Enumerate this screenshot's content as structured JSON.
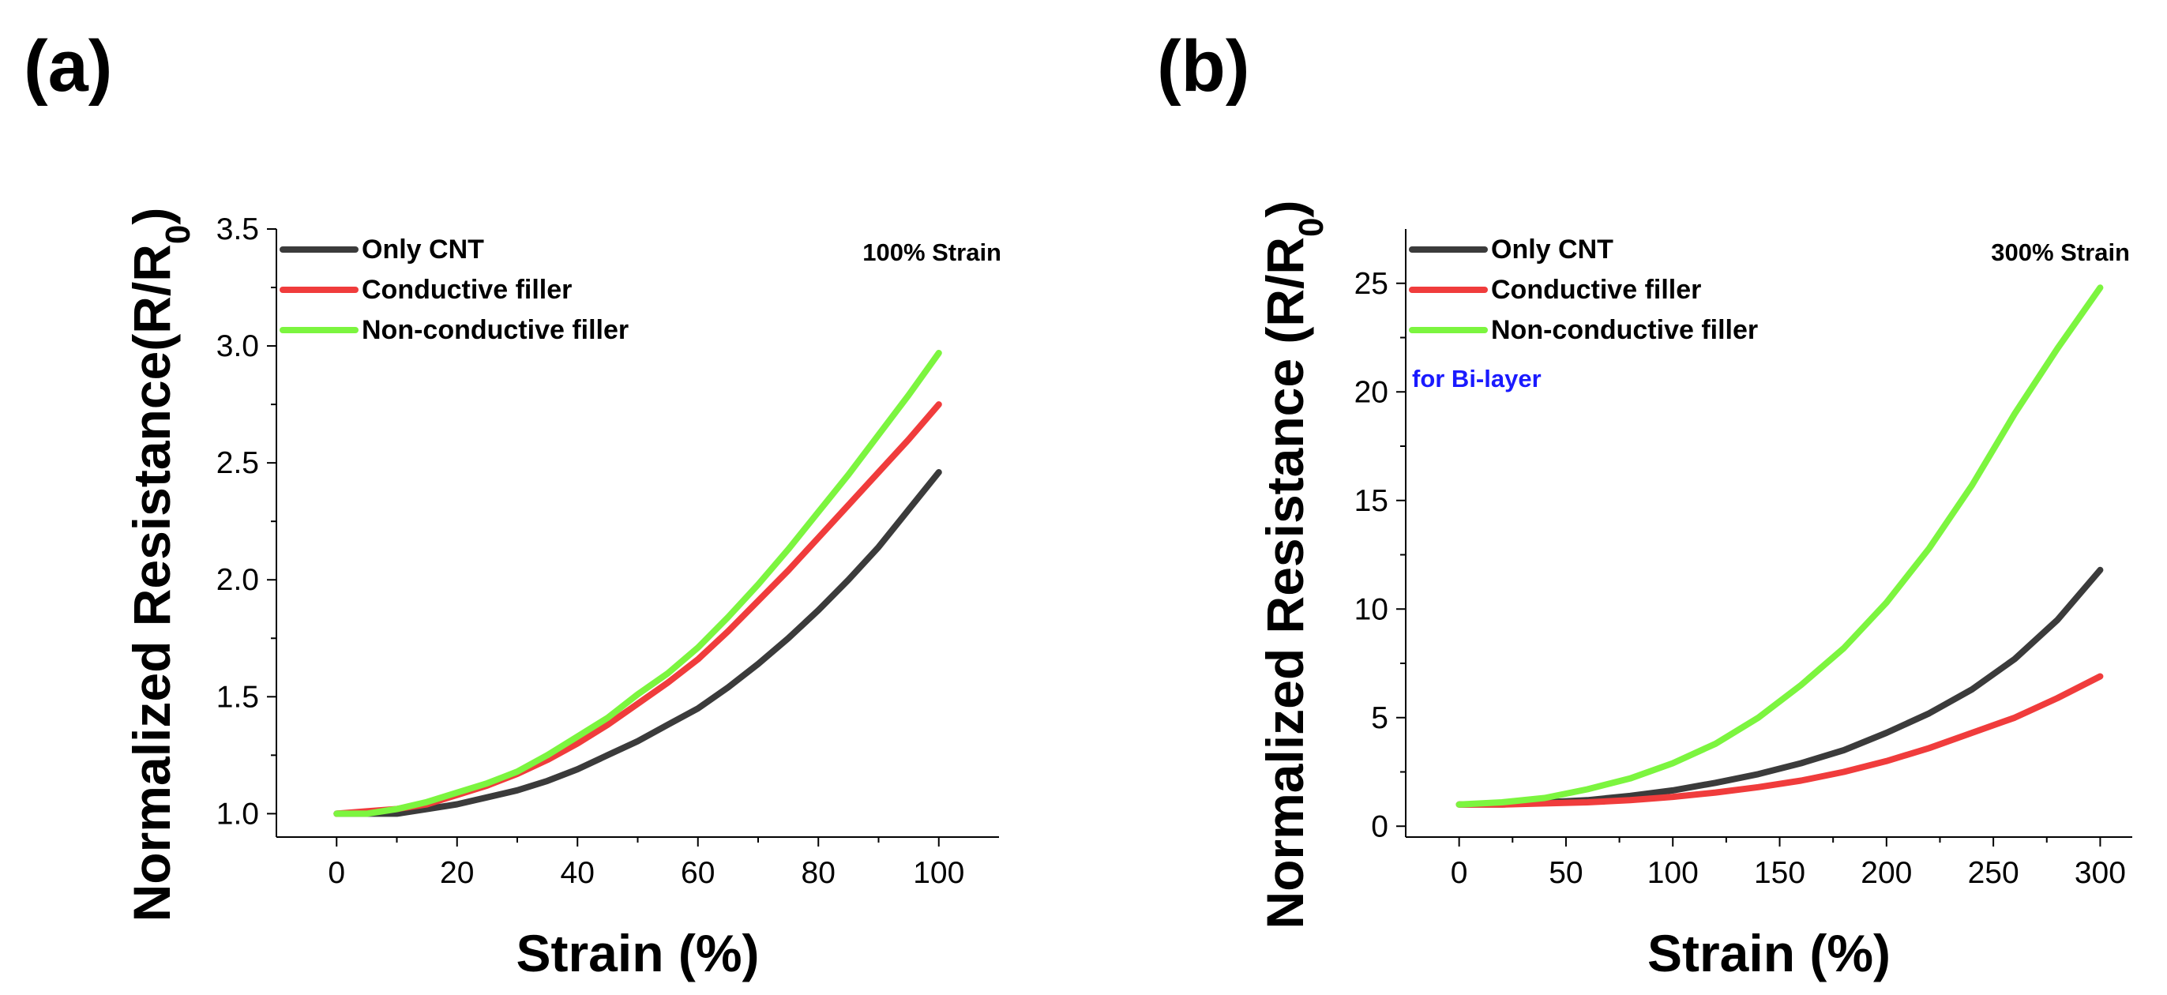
{
  "chart_data": [
    {
      "type": "line",
      "panel_label": "(a)",
      "title": "",
      "xlabel": "Strain (%)",
      "ylabel": "Normalized Resistance(R/R",
      "ylabel_subscript": "0",
      "ylabel_suffix": ")",
      "xlim": [
        -10,
        110
      ],
      "ylim": [
        0.9,
        3.5
      ],
      "x_ticks": [
        0,
        20,
        40,
        60,
        80,
        100
      ],
      "x_tick_labels": [
        "0",
        "20",
        "40",
        "60",
        "80",
        "100"
      ],
      "y_ticks": [
        1.0,
        1.5,
        2.0,
        2.5,
        3.0,
        3.5
      ],
      "y_tick_labels": [
        "1.0",
        "1.5",
        "2.0",
        "2.5",
        "3.0",
        "3.5"
      ],
      "grid": false,
      "legend_position": "top-left",
      "annotation": "100% Strain",
      "series": [
        {
          "name": "Only CNT",
          "color": "#3b3b3b",
          "x": [
            0,
            5,
            10,
            15,
            20,
            25,
            30,
            35,
            40,
            45,
            50,
            55,
            60,
            65,
            70,
            75,
            80,
            85,
            90,
            95,
            100
          ],
          "y": [
            1.0,
            1.0,
            1.0,
            1.02,
            1.04,
            1.07,
            1.1,
            1.14,
            1.19,
            1.25,
            1.31,
            1.38,
            1.45,
            1.54,
            1.64,
            1.75,
            1.87,
            2.0,
            2.14,
            2.3,
            2.46
          ]
        },
        {
          "name": "Conductive filler",
          "color": "#f03c3c",
          "x": [
            0,
            5,
            10,
            15,
            20,
            25,
            30,
            35,
            40,
            45,
            50,
            55,
            60,
            65,
            70,
            75,
            80,
            85,
            90,
            95,
            100
          ],
          "y": [
            1.0,
            1.01,
            1.02,
            1.04,
            1.08,
            1.12,
            1.17,
            1.23,
            1.3,
            1.38,
            1.47,
            1.56,
            1.66,
            1.78,
            1.91,
            2.04,
            2.18,
            2.32,
            2.46,
            2.6,
            2.75
          ]
        },
        {
          "name": "Non-conductive filler",
          "color": "#7cf53f",
          "x": [
            0,
            5,
            10,
            15,
            20,
            25,
            30,
            35,
            40,
            45,
            50,
            55,
            60,
            65,
            70,
            75,
            80,
            85,
            90,
            95,
            100
          ],
          "y": [
            1.0,
            1.0,
            1.02,
            1.05,
            1.09,
            1.13,
            1.18,
            1.25,
            1.33,
            1.41,
            1.51,
            1.6,
            1.71,
            1.84,
            1.98,
            2.13,
            2.29,
            2.45,
            2.62,
            2.79,
            2.97
          ]
        }
      ]
    },
    {
      "type": "line",
      "panel_label": "(b)",
      "title": "",
      "xlabel": "Strain (%)",
      "ylabel": "Normalized Resistance (R/R",
      "ylabel_subscript": "0",
      "ylabel_suffix": ")",
      "xlim": [
        -25,
        315
      ],
      "ylim": [
        -0.5,
        27.5
      ],
      "x_ticks": [
        0,
        50,
        100,
        150,
        200,
        250,
        300
      ],
      "x_tick_labels": [
        "0",
        "50",
        "100",
        "150",
        "200",
        "250",
        "300"
      ],
      "y_ticks": [
        0,
        5,
        10,
        15,
        20,
        25
      ],
      "y_tick_labels": [
        "0",
        "5",
        "10",
        "15",
        "20",
        "25"
      ],
      "grid": false,
      "legend_position": "top-left",
      "annotation": "300% Strain",
      "note": "for Bi-layer",
      "note_color": "#1a1aff",
      "series": [
        {
          "name": "Only CNT",
          "color": "#3b3b3b",
          "x": [
            0,
            20,
            40,
            60,
            80,
            100,
            120,
            140,
            160,
            180,
            200,
            220,
            240,
            260,
            280,
            300
          ],
          "y": [
            1.0,
            1.0,
            1.1,
            1.2,
            1.4,
            1.65,
            2.0,
            2.4,
            2.9,
            3.5,
            4.3,
            5.2,
            6.3,
            7.7,
            9.5,
            11.8
          ]
        },
        {
          "name": "Conductive filler",
          "color": "#f03c3c",
          "x": [
            0,
            20,
            40,
            60,
            80,
            100,
            120,
            140,
            160,
            180,
            200,
            220,
            240,
            260,
            280,
            300
          ],
          "y": [
            1.0,
            1.0,
            1.05,
            1.1,
            1.2,
            1.35,
            1.55,
            1.8,
            2.1,
            2.5,
            3.0,
            3.6,
            4.3,
            5.0,
            5.9,
            6.9
          ]
        },
        {
          "name": "Non-conductive filler",
          "color": "#7cf53f",
          "x": [
            0,
            20,
            40,
            60,
            80,
            100,
            120,
            140,
            160,
            180,
            200,
            220,
            240,
            260,
            280,
            300
          ],
          "y": [
            1.0,
            1.1,
            1.3,
            1.7,
            2.2,
            2.9,
            3.8,
            5.0,
            6.5,
            8.2,
            10.3,
            12.8,
            15.7,
            19.0,
            22.0,
            24.8
          ]
        }
      ]
    }
  ]
}
